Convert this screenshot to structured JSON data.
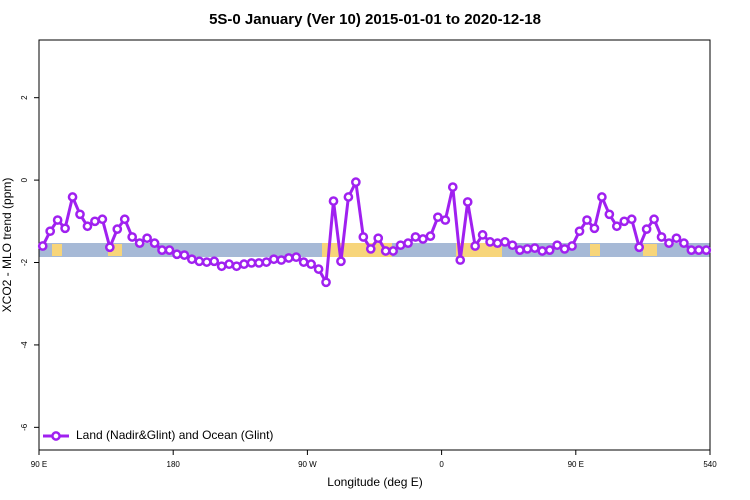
{
  "chart_data": {
    "type": "line",
    "title": "5S-0 January (Ver 10)   2015-01-01 to 2020-12-18",
    "x_label": "Longitude (deg E)",
    "y_label": "XCO2 - MLO trend (ppm)",
    "x": [
      92.5,
      97.5,
      102.5,
      107.5,
      112.5,
      117.5,
      122.5,
      127.5,
      132.5,
      137.5,
      142.5,
      147.5,
      152.5,
      157.5,
      162.5,
      167.5,
      172.5,
      177.5,
      182.5,
      187.5,
      192.5,
      197.5,
      202.5,
      207.5,
      212.5,
      217.5,
      222.5,
      227.5,
      232.5,
      237.5,
      242.5,
      247.5,
      252.5,
      257.5,
      262.5,
      267.5,
      272.5,
      277.5,
      282.5,
      287.5,
      292.5,
      297.5,
      302.5,
      307.5,
      312.5,
      317.5,
      322.5,
      327.5,
      332.5,
      337.5,
      342.5,
      347.5,
      352.5,
      357.5,
      362.5,
      367.5,
      372.5,
      377.5,
      382.5,
      387.5,
      392.5,
      397.5,
      402.5,
      407.5,
      412.5,
      417.5,
      422.5,
      427.5,
      432.5,
      437.5,
      442.5,
      447.5,
      452.5,
      457.5,
      462.5,
      467.5,
      472.5,
      477.5,
      482.5,
      487.5,
      492.5,
      497.5,
      502.5,
      507.5,
      512.5,
      517.5,
      522.5,
      527.5,
      532.5,
      537.5
    ],
    "series": [
      {
        "name": "Land (Nadir&Glint) and Ocean (Glint)",
        "color": "#a020f0",
        "values": [
          -1.6,
          -1.24,
          -0.97,
          -1.17,
          -0.41,
          -0.83,
          -1.12,
          -1.0,
          -0.95,
          -1.63,
          -1.19,
          -0.95,
          -1.38,
          -1.53,
          -1.41,
          -1.53,
          -1.7,
          -1.7,
          -1.8,
          -1.82,
          -1.92,
          -1.97,
          -1.99,
          -1.97,
          -2.09,
          -2.04,
          -2.09,
          -2.04,
          -2.01,
          -2.01,
          -1.99,
          -1.92,
          -1.94,
          -1.89,
          -1.87,
          -1.99,
          -2.04,
          -2.16,
          -2.48,
          -0.51,
          -1.97,
          -0.41,
          -0.05,
          -1.38,
          -1.67,
          -1.41,
          -1.72,
          -1.72,
          -1.58,
          -1.53,
          -1.38,
          -1.43,
          -1.36,
          -0.9,
          -0.97,
          -0.17,
          -1.94,
          -0.53,
          -1.6,
          -1.33,
          -1.5,
          -1.53,
          -1.5,
          -1.58,
          -1.7,
          -1.67,
          -1.65,
          -1.72,
          -1.7,
          -1.58,
          -1.67,
          -1.6,
          -1.24,
          -0.97,
          -1.17,
          -0.41,
          -0.83,
          -1.12,
          -1.0,
          -0.95,
          -1.63,
          -1.19,
          -0.95,
          -1.38,
          -1.53,
          -1.41,
          -1.53,
          -1.7,
          -1.7,
          -1.7
        ]
      }
    ],
    "xlim": [
      90,
      540
    ],
    "xticks": [
      {
        "value": 90,
        "label": "90 E"
      },
      180,
      {
        "value": 270,
        "label": "90 W"
      },
      {
        "value": 360,
        "label": "0"
      },
      {
        "value": 450,
        "label": "90 E"
      },
      540
    ],
    "ylim": [
      -6.55,
      3.4
    ],
    "yticks": [
      -6,
      -4,
      -2,
      0,
      2
    ],
    "legend": "bottom-left"
  }
}
